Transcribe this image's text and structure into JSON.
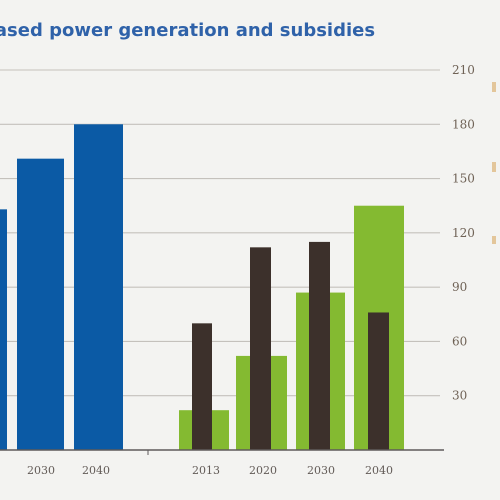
{
  "chart_data": {
    "type": "bar",
    "title": "based power generation and subsidies",
    "y_axis": {
      "ticks": [
        30,
        60,
        90,
        120,
        150,
        180,
        210
      ],
      "range": [
        0,
        210
      ],
      "side": "right"
    },
    "grid": true,
    "groups": [
      {
        "name": "left",
        "categories": [
          "",
          "2030",
          "2040"
        ],
        "series": [
          {
            "color": "#0b5aa5",
            "values": [
              133,
              161,
              180
            ]
          }
        ]
      },
      {
        "name": "right",
        "categories": [
          "2013",
          "2020",
          "2030",
          "2040"
        ],
        "series": [
          {
            "color": "#84ba31",
            "values": [
              22,
              52,
              87,
              135
            ]
          },
          {
            "color": "#3c302b",
            "values": [
              70,
              112,
              115,
              76
            ]
          }
        ]
      }
    ]
  }
}
